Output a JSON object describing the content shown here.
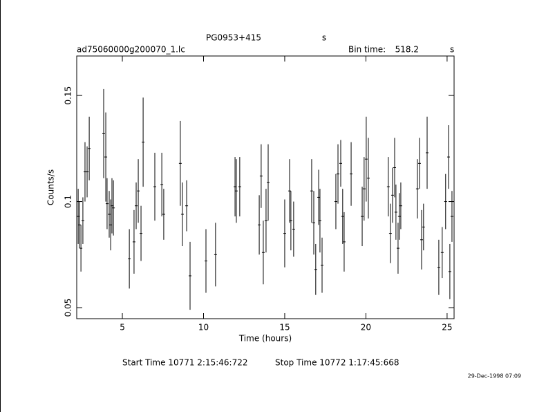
{
  "chart_data": {
    "type": "scatter",
    "title": "PG0953+415",
    "title_unit": "s",
    "file_name": "ad75060000g200070_1.lc",
    "bin_time_label": "Bin time:",
    "bin_time": 518.2,
    "bin_time_unit": "s",
    "x_label": "Time (hours)",
    "y_label": "Counts/s",
    "start_time": "Start Time 10771  2:15:46:722",
    "stop_time": "Stop Time 10772  1:17:45:668",
    "timestamp": "29-Dec-1998 07:09",
    "color": "#000000",
    "xlim": [
      2.19,
      25.43
    ],
    "ylim": [
      0.0448,
      0.1686
    ],
    "xticks": [
      5,
      10,
      15,
      20,
      25
    ],
    "yticks": [
      0.05,
      0.1,
      0.15
    ],
    "x": [
      2.28,
      2.36,
      2.45,
      2.57,
      2.7,
      2.83,
      2.96,
      3.85,
      3.98,
      4.06,
      4.19,
      4.28,
      4.36,
      4.45,
      5.43,
      5.72,
      5.85,
      5.98,
      6.15,
      6.28,
      7.0,
      7.43,
      7.55,
      8.57,
      8.7,
      8.96,
      9.17,
      10.15,
      10.74,
      11.94,
      12.02,
      12.23,
      13.43,
      13.55,
      13.68,
      13.85,
      13.98,
      15.0,
      15.3,
      15.38,
      15.55,
      16.66,
      16.79,
      16.91,
      17.09,
      17.17,
      17.3,
      18.15,
      18.28,
      18.45,
      18.57,
      18.66,
      19.09,
      19.77,
      19.89,
      20.02,
      20.15,
      21.38,
      21.51,
      21.64,
      21.77,
      21.85,
      21.98,
      22.06,
      22.15,
      23.17,
      23.3,
      23.43,
      23.55,
      23.77,
      24.49,
      24.7,
      24.91,
      25.09,
      25.17,
      25.3
    ],
    "values": [
      0.093,
      0.089,
      0.078,
      0.091,
      0.114,
      0.114,
      0.125,
      0.132,
      0.121,
      0.099,
      0.094,
      0.089,
      0.098,
      0.097,
      0.073,
      0.081,
      0.098,
      0.105,
      0.085,
      0.128,
      0.107,
      0.108,
      0.094,
      0.118,
      0.094,
      0.098,
      0.065,
      0.072,
      0.075,
      0.107,
      0.105,
      0.107,
      0.089,
      0.112,
      0.076,
      0.091,
      0.109,
      0.085,
      0.105,
      0.091,
      0.087,
      0.105,
      0.09,
      0.068,
      0.102,
      0.091,
      0.07,
      0.1,
      0.113,
      0.118,
      0.093,
      0.081,
      0.113,
      0.093,
      0.106,
      0.12,
      0.111,
      0.107,
      0.085,
      0.103,
      0.116,
      0.095,
      0.078,
      0.093,
      0.098,
      0.106,
      0.118,
      0.082,
      0.088,
      0.123,
      0.069,
      0.076,
      0.1,
      0.121,
      0.067,
      0.093
    ],
    "errors": [
      0.013,
      0.011,
      0.011,
      0.011,
      0.014,
      0.012,
      0.015,
      0.021,
      0.021,
      0.012,
      0.011,
      0.012,
      0.013,
      0.013,
      0.014,
      0.015,
      0.011,
      0.015,
      0.013,
      0.021,
      0.016,
      0.015,
      0.012,
      0.02,
      0.015,
      0.012,
      0.016,
      0.015,
      0.015,
      0.014,
      0.015,
      0.014,
      0.014,
      0.015,
      0.015,
      0.015,
      0.018,
      0.016,
      0.015,
      0.014,
      0.013,
      0.015,
      0.015,
      0.012,
      0.013,
      0.015,
      0.013,
      0.013,
      0.014,
      0.011,
      0.013,
      0.014,
      0.015,
      0.014,
      0.015,
      0.02,
      0.019,
      0.014,
      0.014,
      0.013,
      0.014,
      0.013,
      0.012,
      0.011,
      0.011,
      0.014,
      0.012,
      0.014,
      0.011,
      0.017,
      0.013,
      0.012,
      0.013,
      0.015,
      0.013,
      0.012
    ]
  }
}
